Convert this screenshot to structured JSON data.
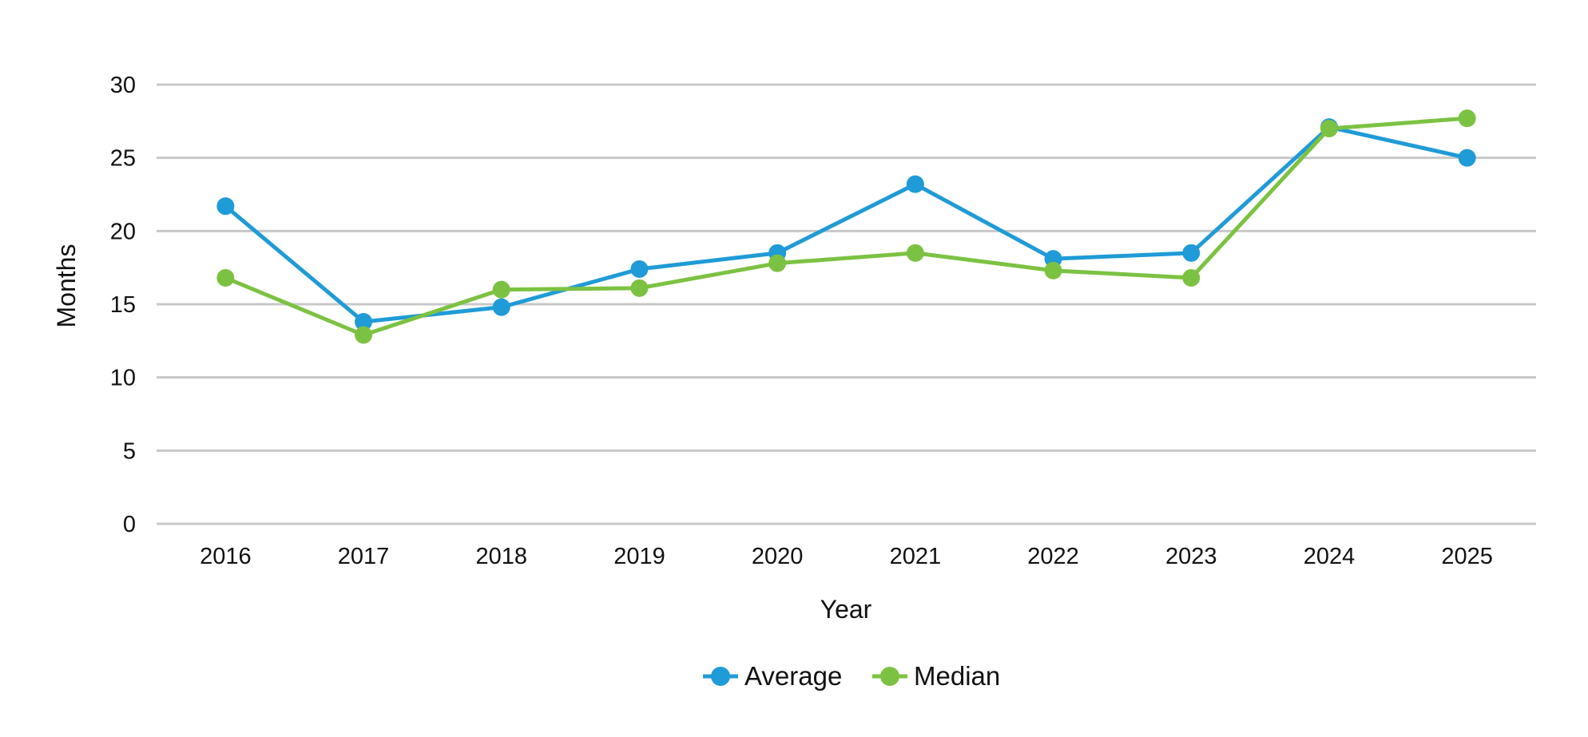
{
  "chart_data": {
    "type": "line",
    "title": "",
    "xlabel": "Year",
    "ylabel": "Months",
    "categories": [
      "2016",
      "2017",
      "2018",
      "2019",
      "2020",
      "2021",
      "2022",
      "2023",
      "2024",
      "2025"
    ],
    "ylim": [
      0,
      30
    ],
    "yticks": [
      0,
      5,
      10,
      15,
      20,
      25,
      30
    ],
    "grid": "horizontal",
    "legend_position": "bottom-center",
    "series": [
      {
        "name": "Average",
        "color": "#1f9bd7",
        "values": [
          21.7,
          13.8,
          14.8,
          17.4,
          18.5,
          23.2,
          18.1,
          18.5,
          27.1,
          25.0
        ]
      },
      {
        "name": "Median",
        "color": "#7cc242",
        "values": [
          16.8,
          12.9,
          16.0,
          16.1,
          17.8,
          18.5,
          17.3,
          16.8,
          27.0,
          27.7
        ]
      }
    ],
    "grid_color": "#c8c8c8"
  }
}
